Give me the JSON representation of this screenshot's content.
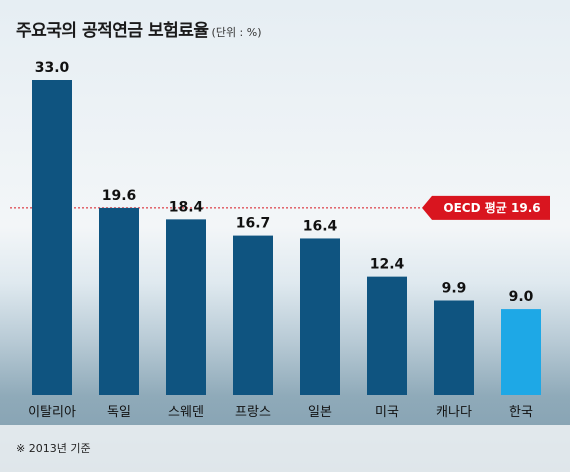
{
  "chart_data": {
    "type": "bar",
    "title": "주요국의 공적연금 보험료율",
    "unit_note": "(단위 : %)",
    "categories": [
      "이탈리아",
      "독일",
      "스웨덴",
      "프랑스",
      "일본",
      "미국",
      "캐나다",
      "한국"
    ],
    "values": [
      33.0,
      19.6,
      18.4,
      16.7,
      16.4,
      12.4,
      9.9,
      9.0
    ],
    "value_labels": [
      "33.0",
      "19.6",
      "18.4",
      "16.7",
      "16.4",
      "12.4",
      "9.9",
      "9.0"
    ],
    "reference_line": {
      "label": "OECD 평균 19.6",
      "value": 19.6
    },
    "ylim": [
      0,
      33.0
    ],
    "grid": false,
    "colors": {
      "bar": "#0f5480",
      "highlight": "#1ea8e6",
      "reference": "#d9151f"
    },
    "highlight_category": "한국",
    "footnote": "※ 2013년 기준"
  }
}
